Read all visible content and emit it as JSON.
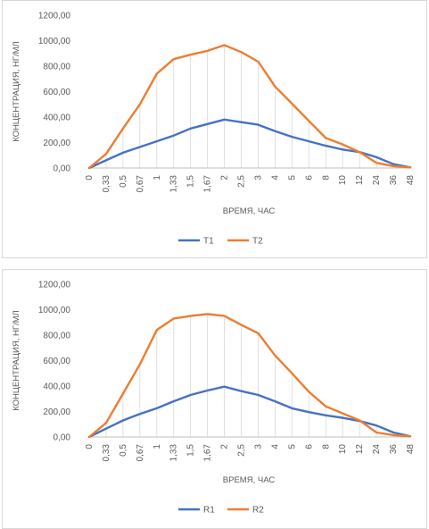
{
  "chart_data": [
    {
      "type": "line",
      "categories": [
        "0",
        "0,33",
        "0,5",
        "0,67",
        "1",
        "1,33",
        "1,5",
        "1,67",
        "2",
        "2,5",
        "3",
        "4",
        "5",
        "6",
        "8",
        "10",
        "12",
        "24",
        "36",
        "48"
      ],
      "series": [
        {
          "name": "T1",
          "color": "#4472c4",
          "values": [
            0,
            60,
            120,
            165,
            210,
            255,
            310,
            345,
            380,
            360,
            340,
            290,
            245,
            210,
            175,
            145,
            125,
            85,
            30,
            5
          ]
        },
        {
          "name": "T2",
          "color": "#ed7d31",
          "values": [
            0,
            110,
            310,
            500,
            740,
            855,
            890,
            920,
            965,
            910,
            835,
            640,
            505,
            370,
            235,
            185,
            125,
            40,
            15,
            5
          ]
        }
      ],
      "yticks": [
        "0,00",
        "200,00",
        "400,00",
        "600,00",
        "800,00",
        "1000,00",
        "1200,00"
      ],
      "ylim": [
        0,
        1200
      ],
      "xlabel": "ВРЕМЯ, ЧАС",
      "ylabel": "КОНЦЕНТРАЦИЯ, НГ/МЛ",
      "legend_position": "bottom",
      "grid": "vertical drop lines"
    },
    {
      "type": "line",
      "categories": [
        "0",
        "0,33",
        "0,5",
        "0,67",
        "1",
        "1,33",
        "1,5",
        "1,67",
        "2",
        "2,5",
        "3",
        "4",
        "5",
        "6",
        "8",
        "10",
        "12",
        "24",
        "36",
        "48"
      ],
      "series": [
        {
          "name": "R1",
          "color": "#4472c4",
          "values": [
            0,
            65,
            130,
            180,
            225,
            280,
            330,
            365,
            395,
            360,
            330,
            280,
            225,
            195,
            170,
            150,
            125,
            90,
            35,
            5
          ]
        },
        {
          "name": "R2",
          "color": "#ed7d31",
          "values": [
            0,
            110,
            340,
            570,
            840,
            930,
            950,
            965,
            950,
            880,
            815,
            640,
            500,
            355,
            240,
            185,
            130,
            35,
            15,
            5
          ]
        }
      ],
      "yticks": [
        "0,00",
        "200,00",
        "400,00",
        "600,00",
        "800,00",
        "1000,00",
        "1200,00"
      ],
      "ylim": [
        0,
        1200
      ],
      "xlabel": "ВРЕМЯ, ЧАС",
      "ylabel": "КОНЦЕНТРАЦИЯ, НГ/МЛ",
      "legend_position": "bottom",
      "grid": "vertical drop lines"
    }
  ]
}
